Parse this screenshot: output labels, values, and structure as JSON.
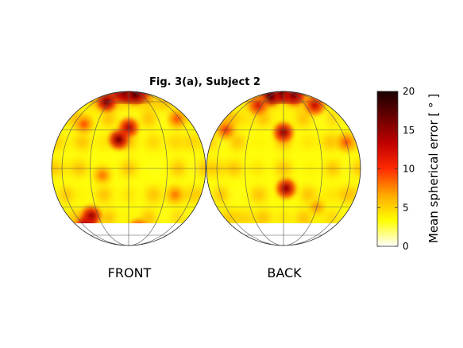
{
  "chart_data": {
    "type": "heatmap",
    "title": "Fig. 3(a), Subject 2",
    "panels": [
      {
        "label": "FRONT"
      },
      {
        "label": "BACK"
      }
    ],
    "colorbar": {
      "label": "Mean spherical error [ ° ]",
      "min": 0,
      "max": 20,
      "ticks": [
        0,
        5,
        10,
        15,
        20
      ],
      "colormap": "hot (reversed)",
      "stops": [
        "#ffffff",
        "#ffff00",
        "#ffa800",
        "#ff2a00",
        "#c00000",
        "#6a0000",
        "#1a0000"
      ]
    },
    "projection": "Hammer–Aitoff, two hemispheres",
    "grid": true,
    "hotspots": {
      "front": [
        {
          "lon": -10,
          "lat": 82,
          "value": 19
        },
        {
          "lon": 20,
          "lat": 75,
          "value": 18
        },
        {
          "lon": -35,
          "lat": 60,
          "value": 16
        },
        {
          "lon": 0,
          "lat": 32,
          "value": 14
        },
        {
          "lon": -8,
          "lat": 22,
          "value": 16
        },
        {
          "lon": -45,
          "lat": 35,
          "value": 9
        },
        {
          "lon": -38,
          "lat": -38,
          "value": 15
        },
        {
          "lon": -55,
          "lat": -48,
          "value": 18
        },
        {
          "lon": -62,
          "lat": -50,
          "value": 16
        },
        {
          "lon": 12,
          "lat": -52,
          "value": 12
        },
        {
          "lon": 55,
          "lat": 40,
          "value": 9
        },
        {
          "lon": 40,
          "lat": -20,
          "value": 8
        },
        {
          "lon": -20,
          "lat": -5,
          "value": 8
        }
      ],
      "back": [
        {
          "lon": 0,
          "lat": 85,
          "value": 20
        },
        {
          "lon": -30,
          "lat": 70,
          "value": 18
        },
        {
          "lon": 25,
          "lat": 72,
          "value": 16
        },
        {
          "lon": 45,
          "lat": 55,
          "value": 13
        },
        {
          "lon": 0,
          "lat": 28,
          "value": 15
        },
        {
          "lon": 2,
          "lat": -15,
          "value": 15
        },
        {
          "lon": -60,
          "lat": 30,
          "value": 10
        },
        {
          "lon": -35,
          "lat": 55,
          "value": 12
        },
        {
          "lon": 60,
          "lat": 20,
          "value": 9
        },
        {
          "lon": 30,
          "lat": -30,
          "value": 7
        }
      ]
    }
  }
}
